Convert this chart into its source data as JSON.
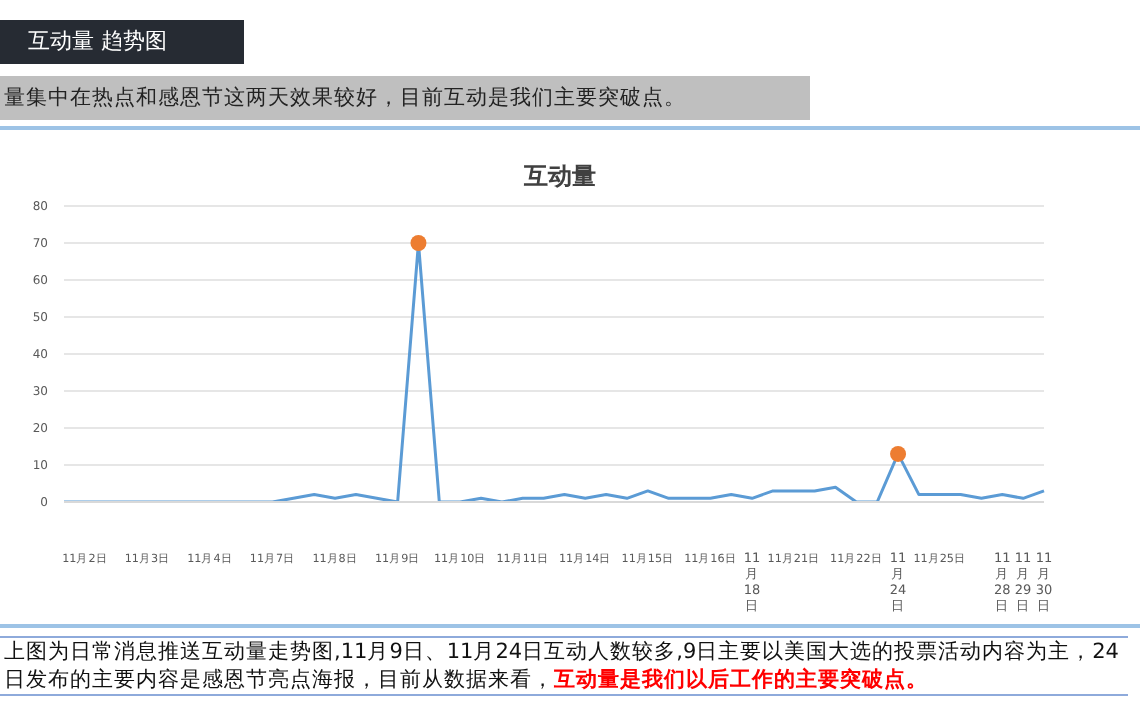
{
  "chart_data": {
    "type": "line",
    "title": "互动量",
    "subtitle": "量集中在热点和感恩节这两天效果较好，目前互动是我们主要突破点。",
    "annotations": [
      "互动量 趋势图",
      "上图为日常消息推送互动量走势图,11月9日、11月24日互动人数较多,9日主要以美国大选的投票活动内容为主，24日发布的主要内容是感恩节亮点海报，目前从数据来看，",
      "互动量是我们以后工作的主要突破点。"
    ],
    "categories": [
      null,
      "11月2日",
      null,
      null,
      "11月3日",
      null,
      null,
      "11月4日",
      null,
      null,
      "11月7日",
      null,
      null,
      "11月8日",
      null,
      null,
      "11月9日",
      null,
      null,
      "11月10日",
      null,
      null,
      "11月11日",
      null,
      null,
      "11月14日",
      null,
      null,
      "11月15日",
      null,
      null,
      "11月16日",
      null,
      "11月18日",
      null,
      "11月21日",
      null,
      null,
      "11月22日",
      null,
      "11月24日",
      null,
      "11月25日",
      null,
      null,
      "11月28日",
      "11月29日",
      "11月30日"
    ],
    "series": [
      {
        "color": "#5b9bd5",
        "values": [
          0,
          0,
          0,
          0,
          0,
          0,
          0,
          0,
          0,
          0,
          0,
          1,
          2,
          1,
          2,
          1,
          0,
          70,
          0,
          0,
          1,
          0,
          1,
          1,
          2,
          1,
          2,
          1,
          3,
          1,
          1,
          1,
          2,
          1,
          3,
          3,
          3,
          4,
          0,
          0,
          13,
          2,
          2,
          2,
          1,
          2,
          1,
          3
        ]
      },
      {
        "type": "scatter",
        "color": "#ed7d31",
        "values": [
          null,
          null,
          null,
          null,
          null,
          null,
          null,
          null,
          null,
          null,
          null,
          null,
          null,
          null,
          null,
          null,
          null,
          70,
          null,
          null,
          null,
          null,
          null,
          null,
          null,
          null,
          null,
          null,
          null,
          null,
          null,
          null,
          null,
          null,
          null,
          null,
          null,
          null,
          null,
          null,
          13,
          null,
          null,
          null,
          null,
          null,
          null,
          null
        ]
      }
    ],
    "ylim": [
      0,
      80
    ],
    "yticks": [
      0,
      10,
      20,
      30,
      40,
      50,
      60,
      70,
      80
    ],
    "grid": "y",
    "legend": false
  }
}
